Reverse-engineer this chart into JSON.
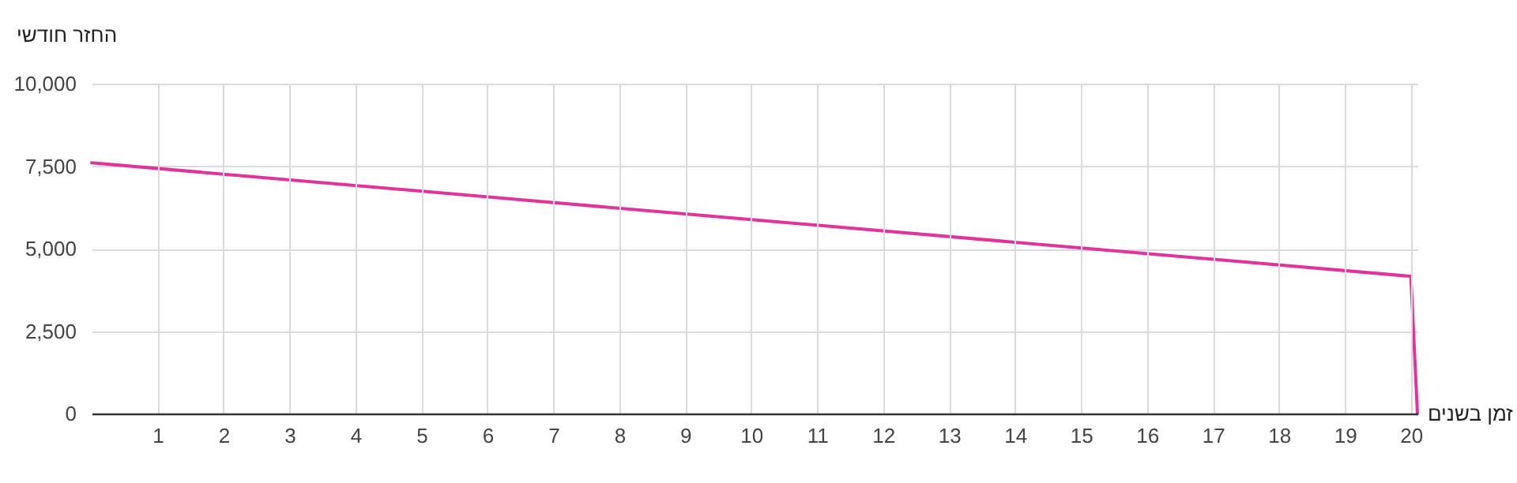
{
  "chart_data": {
    "type": "line",
    "xlabel": "זמן בשנים",
    "ylabel": "החזר חודשי",
    "x": [
      0,
      10,
      20,
      20.1
    ],
    "series": [
      {
        "color": "#e0349a",
        "values": [
          7600,
          5880,
          4160,
          0
        ]
      }
    ],
    "xlim": [
      0,
      20.1
    ],
    "xticks": [
      1,
      2,
      3,
      4,
      5,
      6,
      7,
      8,
      9,
      10,
      11,
      12,
      13,
      14,
      15,
      16,
      17,
      18,
      19,
      20
    ],
    "ylim": [
      0,
      10000
    ],
    "yticks": [
      {
        "value": 0,
        "label": "0"
      },
      {
        "value": 2500,
        "label": "2,500"
      },
      {
        "value": 5000,
        "label": "5,000"
      },
      {
        "value": 7500,
        "label": "7,500"
      },
      {
        "value": 10000,
        "label": "10,000"
      }
    ],
    "grid": true,
    "marker": "none",
    "line_style": "solid"
  }
}
